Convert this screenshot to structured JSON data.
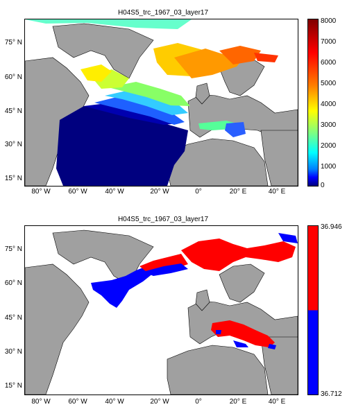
{
  "panels": [
    {
      "title": "H04S5_trc_1967_03_layer17",
      "y_ticks": [
        "75° N",
        "60° N",
        "45° N",
        "30° N",
        "15° N"
      ],
      "x_ticks": [
        "80° W",
        "60° W",
        "40° W",
        "20° W",
        "0°",
        "20° E",
        "40° E"
      ],
      "colorbar_ticks": [
        "8000",
        "7000",
        "6000",
        "5000",
        "4000",
        "3000",
        "2000",
        "1000",
        "0"
      ]
    },
    {
      "title": "H04S5_trc_1967_03_layer17",
      "y_ticks": [
        "75° N",
        "60° N",
        "45° N",
        "30° N",
        "15° N"
      ],
      "x_ticks": [
        "80° W",
        "60° W",
        "40° W",
        "20° W",
        "0°",
        "20° E",
        "40° E"
      ],
      "colorbar_ticks": [
        "36.946",
        "36.712"
      ]
    }
  ],
  "colors": {
    "land": "#a0a0a0",
    "jet_high": "#7f0000",
    "jet_low": "#00007f",
    "red": "#ff0000",
    "blue": "#0000ff"
  }
}
